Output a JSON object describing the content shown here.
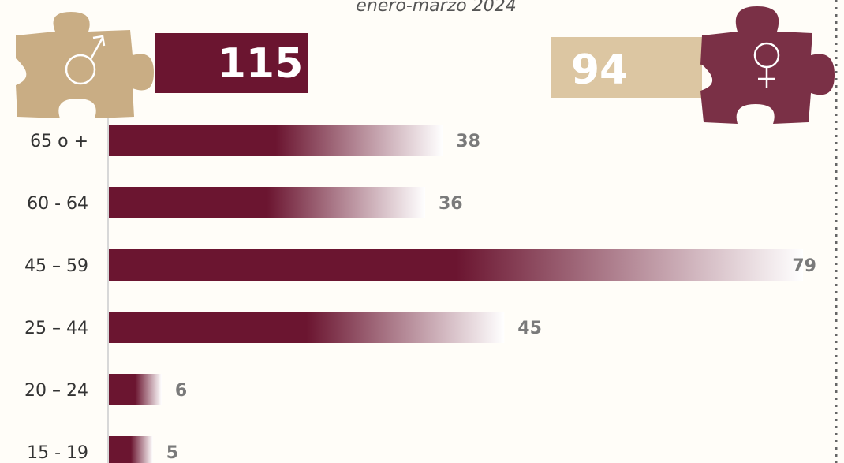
{
  "chart_data": {
    "type": "bar",
    "orientation": "horizontal",
    "subtitle": "enero-marzo 2024",
    "totals": [
      115,
      94
    ],
    "categories": [
      "65 o +",
      "60 - 64",
      "45 – 59",
      "25 – 44",
      "20 – 24",
      "15 - 19"
    ],
    "values": [
      38,
      36,
      79,
      45,
      6,
      5
    ],
    "color": "#6b1530"
  }
}
